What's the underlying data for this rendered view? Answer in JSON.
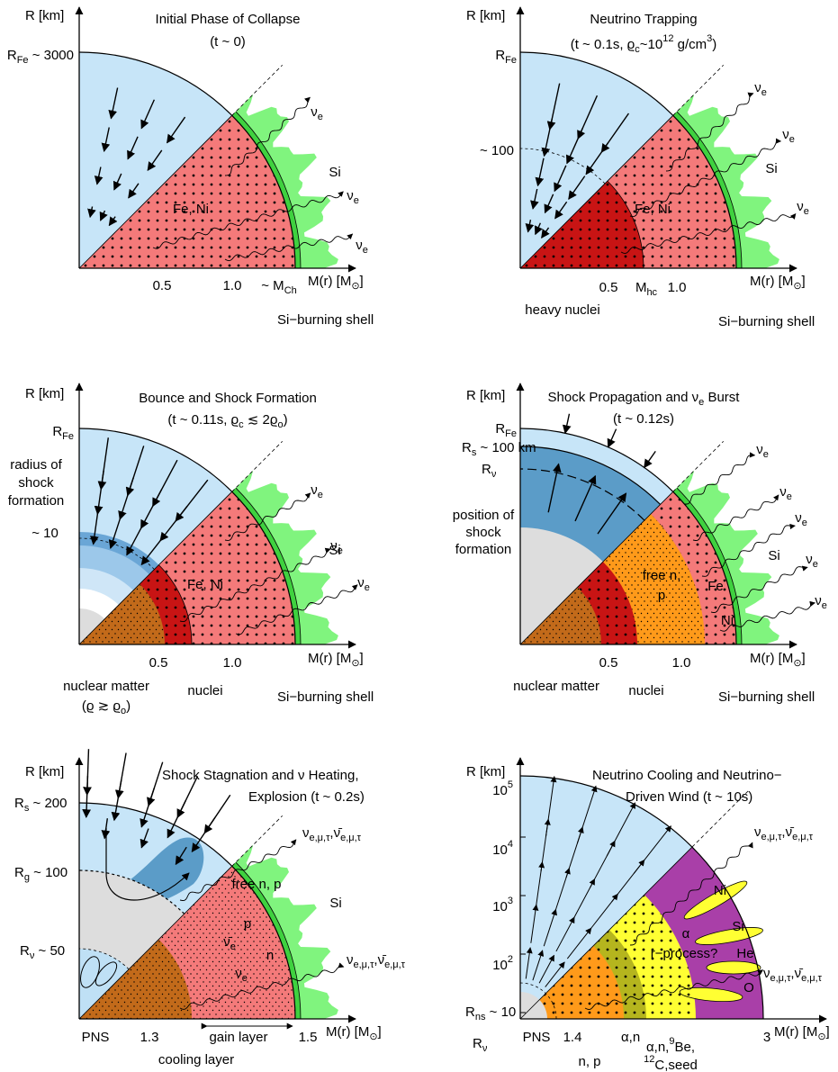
{
  "panels": [
    {
      "labels": [
        "R [km]",
        "Initial Phase of Collapse",
        "(t ~ 0)",
        [
          "R",
          {
            "sub": "Fe"
          },
          " ~ 3000"
        ],
        "Fe, Ni",
        "Si",
        [
          "ν",
          {
            "sub": "e"
          }
        ],
        [
          "ν",
          {
            "sub": "e"
          }
        ],
        [
          "ν",
          {
            "sub": "e"
          }
        ],
        "0.5",
        "1.0",
        [
          "~ M",
          {
            "sub": "Ch"
          }
        ],
        [
          "M(r) [M",
          {
            "sub": "⊙"
          },
          "]"
        ],
        "Si−burning shell"
      ]
    },
    {
      "labels": [
        "R [km]",
        "Neutrino Trapping",
        [
          "(t ~ 0.1s,  ϱ",
          {
            "sub": "c"
          },
          "~10",
          {
            "sup": "12"
          },
          " g/cm",
          {
            "sup": "3"
          },
          ")"
        ],
        [
          "R",
          {
            "sub": "Fe"
          }
        ],
        "~ 100",
        "Fe, Ni",
        "Si",
        [
          "ν",
          {
            "sub": "e"
          }
        ],
        [
          "ν",
          {
            "sub": "e"
          }
        ],
        [
          "ν",
          {
            "sub": "e"
          }
        ],
        "0.5",
        [
          "M",
          {
            "sub": "hc"
          }
        ],
        "1.0",
        [
          "M(r) [M",
          {
            "sub": "⊙"
          },
          "]"
        ],
        "heavy nuclei",
        "Si−burning shell"
      ]
    },
    {
      "labels": [
        "R [km]",
        "Bounce and Shock Formation",
        [
          "(t ~ 0.11s,  ϱ",
          {
            "sub": "c"
          },
          " ≲ 2ϱ",
          {
            "sub": "o"
          },
          ")"
        ],
        [
          "R",
          {
            "sub": "Fe"
          }
        ],
        "radius of",
        "shock",
        "formation",
        "~ 10",
        "Fe, Ni",
        "Si",
        [
          "ν",
          {
            "sub": "e"
          }
        ],
        [
          "ν",
          {
            "sub": "e"
          }
        ],
        [
          "ν",
          {
            "sub": "e"
          }
        ],
        "0.5",
        "1.0",
        [
          "M(r) [M",
          {
            "sub": "⊙"
          },
          "]"
        ],
        "nuclear matter",
        [
          "(ϱ ≳ ϱ",
          {
            "sub": "o"
          },
          ")"
        ],
        "nuclei",
        "Si−burning shell"
      ]
    },
    {
      "labels": [
        "R [km]",
        [
          "Shock Propagation and ν",
          {
            "sub": "e"
          },
          " Burst"
        ],
        "(t ~ 0.12s)",
        [
          "R",
          {
            "sub": "Fe"
          }
        ],
        [
          "R",
          {
            "sub": "s"
          },
          " ~ 100 km"
        ],
        [
          "R",
          {
            "sub": "ν"
          }
        ],
        "position of",
        "shock",
        "formation",
        "free n,",
        "p",
        "Fe",
        "Ni",
        "Si",
        [
          "ν",
          {
            "sub": "e"
          }
        ],
        [
          "ν",
          {
            "sub": "e"
          }
        ],
        [
          "ν",
          {
            "sub": "e"
          }
        ],
        [
          "ν",
          {
            "sub": "e"
          }
        ],
        [
          "ν",
          {
            "sub": "e"
          }
        ],
        "0.5",
        "1.0",
        [
          "M(r) [M",
          {
            "sub": "⊙"
          },
          "]"
        ],
        "nuclear matter",
        "nuclei",
        "Si−burning shell"
      ]
    },
    {
      "labels": [
        "R [km]",
        "Shock Stagnation and ν Heating,",
        "Explosion  (t ~ 0.2s)",
        [
          "R",
          {
            "sub": "s"
          },
          " ~ 200"
        ],
        [
          "R",
          {
            "sub": "g"
          },
          " ~ 100"
        ],
        [
          "R",
          {
            "sub": "ν"
          },
          " ~ 50"
        ],
        "free n, p",
        "p",
        "n",
        [
          "ν̄",
          {
            "sub": "e"
          }
        ],
        [
          "ν",
          {
            "sub": "e"
          }
        ],
        "Si",
        [
          "ν",
          {
            "sub": "e,μ,τ"
          },
          ",ν̄",
          {
            "sub": "e,μ,τ"
          }
        ],
        [
          "ν",
          {
            "sub": "e,μ,τ"
          },
          ",ν̄",
          {
            "sub": "e,μ,τ"
          }
        ],
        "PNS",
        "1.3",
        "gain layer",
        "1.5",
        [
          "M(r) [M",
          {
            "sub": "⊙"
          },
          "]"
        ],
        "cooling layer"
      ]
    },
    {
      "labels": [
        "R [km]",
        "Neutrino Cooling and Neutrino−",
        "Driven Wind  (t ~ 10s)",
        [
          "10",
          {
            "sup": "5"
          }
        ],
        [
          "10",
          {
            "sup": "4"
          }
        ],
        [
          "10",
          {
            "sup": "3"
          }
        ],
        [
          "10",
          {
            "sup": "2"
          }
        ],
        [
          "R",
          {
            "sub": "ns"
          },
          " ~ 10"
        ],
        [
          "R",
          {
            "sub": "ν"
          }
        ],
        "Ni",
        "Si",
        "He",
        "O",
        "α",
        "r−process?",
        [
          "ν",
          {
            "sub": "e,μ,τ"
          },
          ",ν̄",
          {
            "sub": "e,μ,τ"
          }
        ],
        [
          "ν",
          {
            "sub": "e,μ,τ"
          },
          ",ν̄",
          {
            "sub": "e,μ,τ"
          }
        ],
        "PNS",
        "1.4",
        "α,n",
        "3",
        [
          "M(r) [M",
          {
            "sub": "⊙"
          },
          "]"
        ],
        "n, p",
        [
          "α,n,",
          {
            "sup": "9"
          },
          "Be,"
        ],
        [
          {
            "sup": "12"
          },
          "C,seed"
        ]
      ]
    }
  ]
}
